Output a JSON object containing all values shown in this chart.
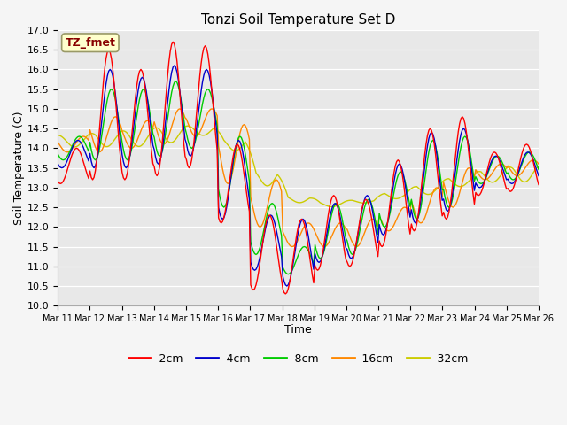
{
  "title": "Tonzi Soil Temperature Set D",
  "xlabel": "Time",
  "ylabel": "Soil Temperature (C)",
  "ylim": [
    10.0,
    17.0
  ],
  "yticks": [
    10.0,
    10.5,
    11.0,
    11.5,
    12.0,
    12.5,
    13.0,
    13.5,
    14.0,
    14.5,
    15.0,
    15.5,
    16.0,
    16.5,
    17.0
  ],
  "series_labels": [
    "-2cm",
    "-4cm",
    "-8cm",
    "-16cm",
    "-32cm"
  ],
  "series_colors": [
    "#ff0000",
    "#0000cc",
    "#00cc00",
    "#ff8800",
    "#cccc00"
  ],
  "legend_label": "TZ_fmet",
  "n_days": 15,
  "start_day": 11,
  "n_per_day": 24
}
